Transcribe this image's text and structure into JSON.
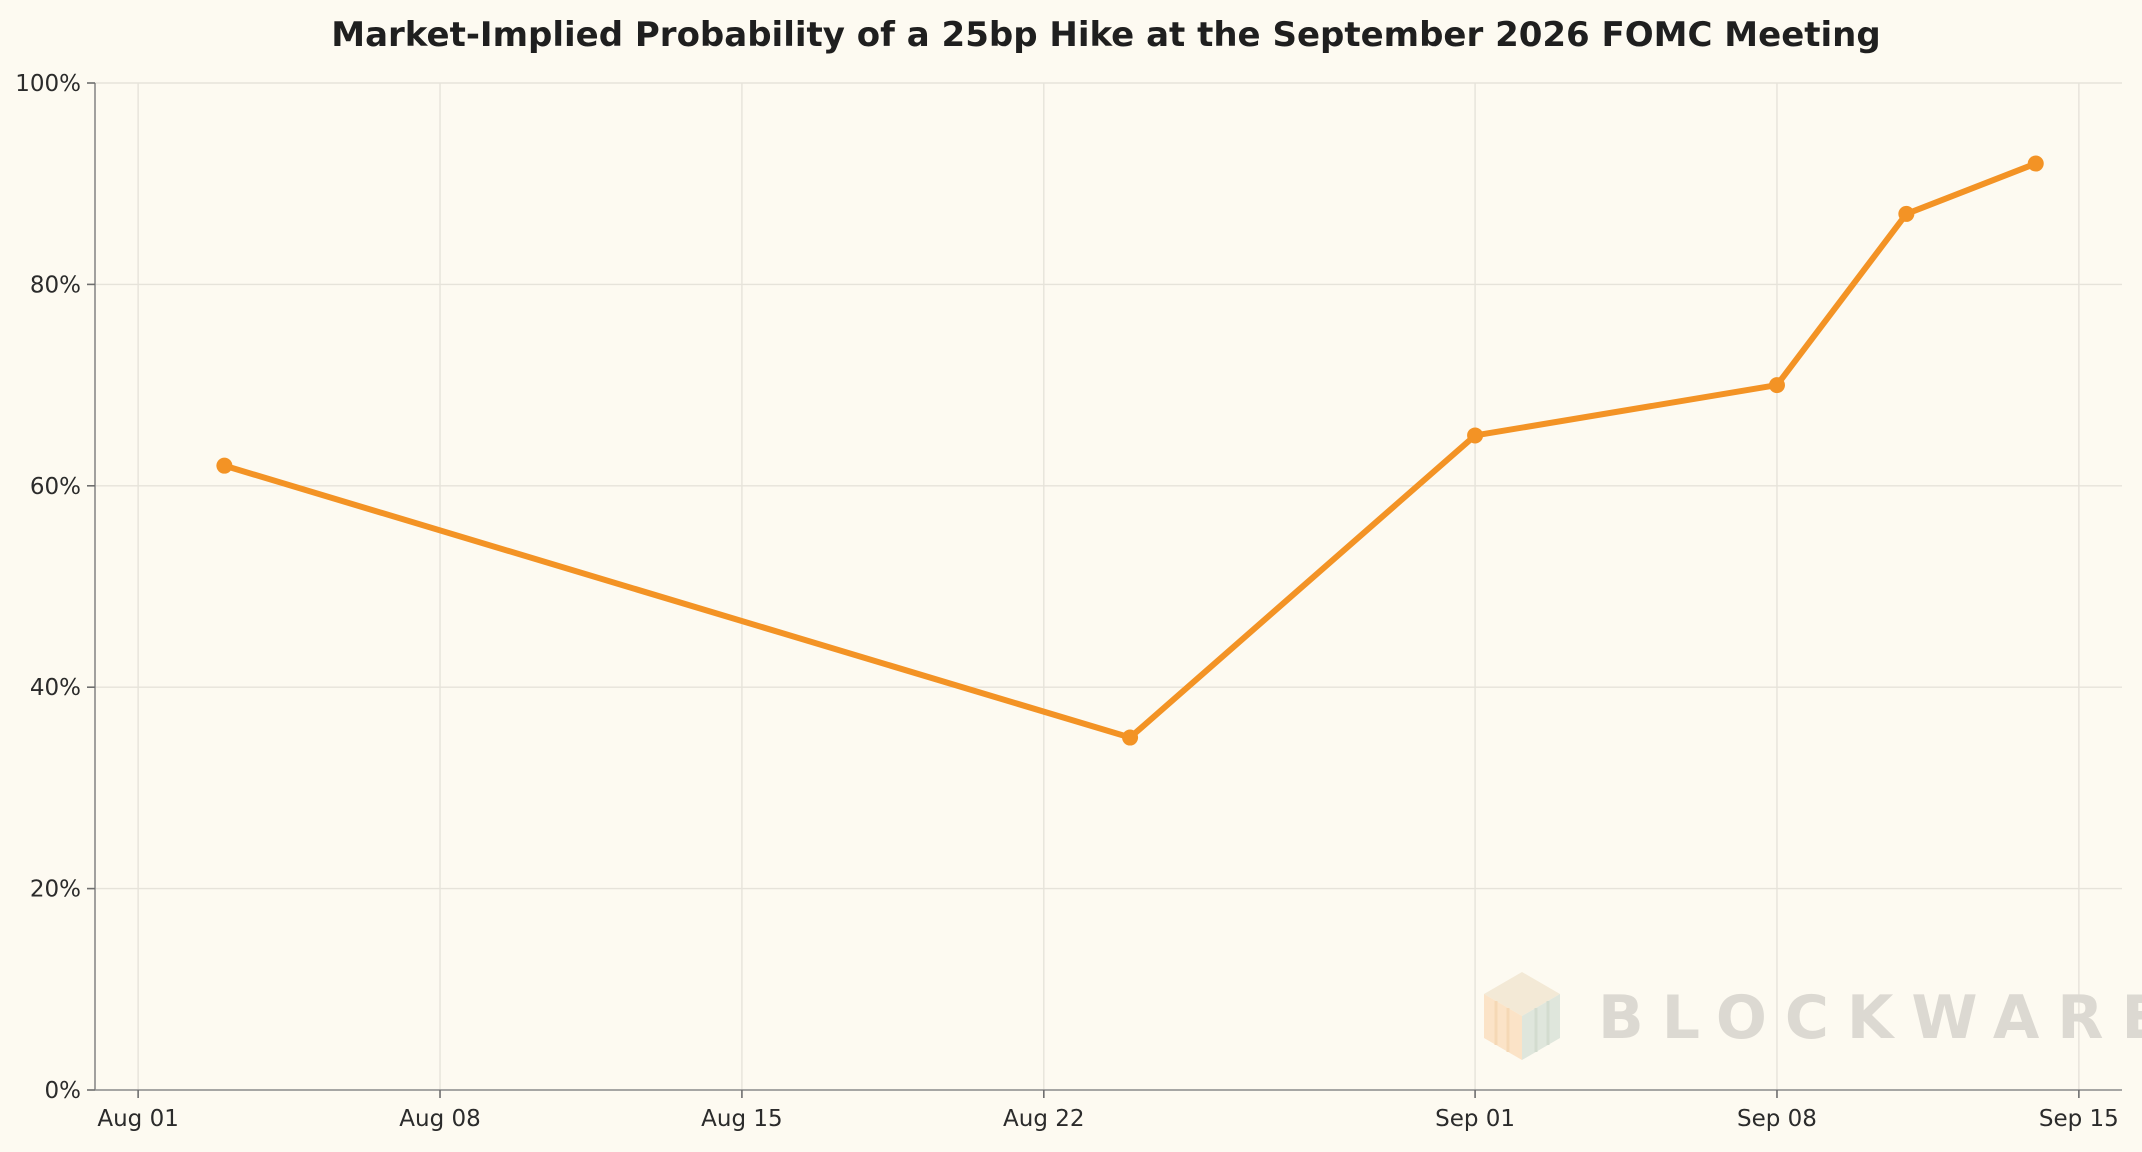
{
  "chart_data": {
    "type": "line",
    "title": "Market-Implied Probability of a 25bp Hike at the September 2026 FOMC Meeting",
    "xlabel": "",
    "ylabel": "",
    "x_range": [
      "2026-07-31",
      "2026-09-16"
    ],
    "ylim": [
      0,
      100
    ],
    "y_unit": "%",
    "grid": true,
    "legend": "none",
    "x_ticks": [
      {
        "date": "2026-08-01",
        "label": "Aug 01"
      },
      {
        "date": "2026-08-08",
        "label": "Aug 08"
      },
      {
        "date": "2026-08-15",
        "label": "Aug 15"
      },
      {
        "date": "2026-08-22",
        "label": "Aug 22"
      },
      {
        "date": "2026-09-01",
        "label": "Sep 01"
      },
      {
        "date": "2026-09-08",
        "label": "Sep 08"
      },
      {
        "date": "2026-09-15",
        "label": "Sep 15"
      }
    ],
    "y_ticks": [
      {
        "value": 0,
        "label": "0%"
      },
      {
        "value": 20,
        "label": "20%"
      },
      {
        "value": 40,
        "label": "40%"
      },
      {
        "value": 60,
        "label": "60%"
      },
      {
        "value": 80,
        "label": "80%"
      },
      {
        "value": 100,
        "label": "100%"
      }
    ],
    "series": [
      {
        "color": "#f39325",
        "points": [
          {
            "x": "2026-08-03",
            "y": 62
          },
          {
            "x": "2026-08-24",
            "y": 35
          },
          {
            "x": "2026-09-01",
            "y": 65
          },
          {
            "x": "2026-09-08",
            "y": 70
          },
          {
            "x": "2026-09-11",
            "y": 87
          },
          {
            "x": "2026-09-14",
            "y": 92
          }
        ]
      }
    ]
  },
  "watermark": {
    "text": "BLOCKWARE",
    "icon": "blockware-logo-icon"
  }
}
